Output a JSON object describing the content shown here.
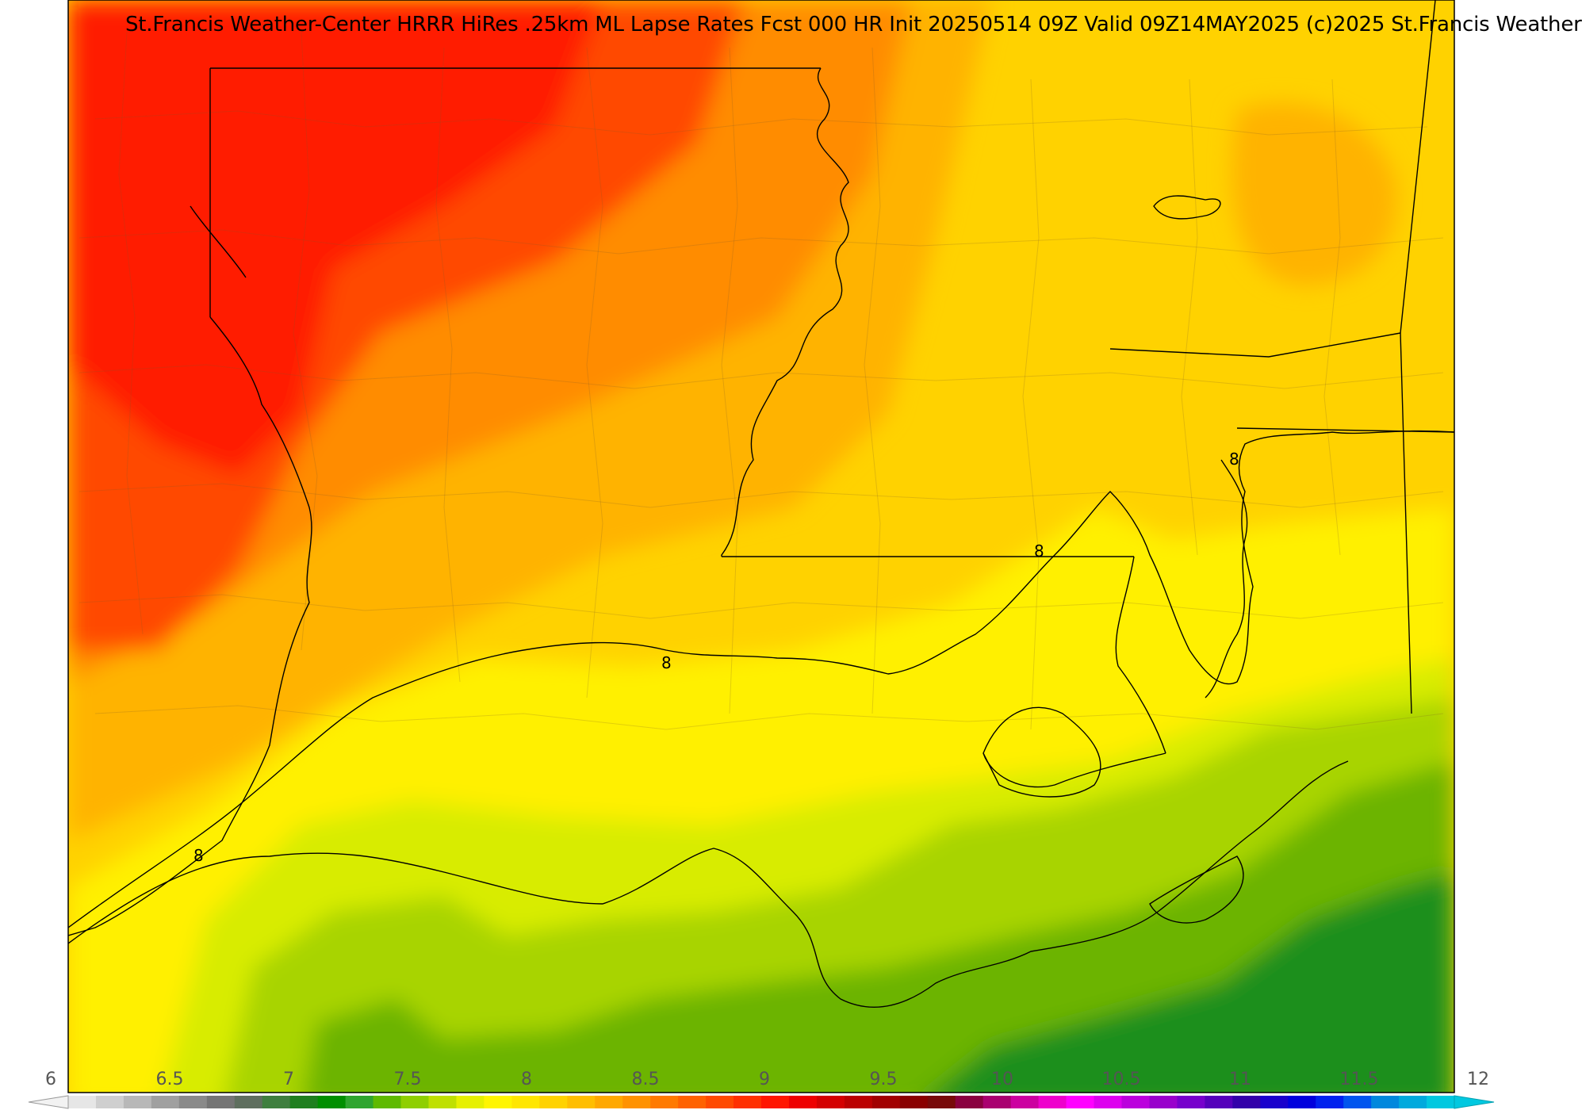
{
  "title": "St.Francis Weather-Center HRRR HiRes .25km ML Lapse Rates  Fcst 000 HR Init 20250514 09Z  Valid 09Z14MAY2025   (c)2025 St.Francis Weather",
  "map": {
    "field": "ML Lapse Rates",
    "contour_labels": [
      "8",
      "8",
      "8",
      "8"
    ],
    "region_colors": {
      "red": "#ff1a00",
      "orange_red": "#ff4a00",
      "orange": "#ff8c00",
      "amber": "#ffb300",
      "yellow_orange": "#ffd200",
      "yellow": "#fff000",
      "yellow_green": "#d8ec00",
      "light_green": "#a8d400",
      "green": "#6cb400",
      "dark_green": "#1f8f1f"
    }
  },
  "colorbar": {
    "tick_labels": [
      "6",
      "6.5",
      "7",
      "7.5",
      "8",
      "8.5",
      "9",
      "9.5",
      "10",
      "10.5",
      "11",
      "11.5",
      "12"
    ],
    "colors": [
      "#e6e6e6",
      "#cfcfcf",
      "#b8b8b8",
      "#a0a0a0",
      "#8a8a8a",
      "#757575",
      "#5f6f5f",
      "#3f7f3f",
      "#1f7f1f",
      "#008f00",
      "#2fa52f",
      "#5fba00",
      "#8fcf00",
      "#bfe000",
      "#e6f000",
      "#fff500",
      "#ffe600",
      "#ffd200",
      "#ffbe00",
      "#ffa800",
      "#ff9200",
      "#ff7a00",
      "#ff6200",
      "#ff4a00",
      "#ff3000",
      "#ff1600",
      "#ee0000",
      "#d40000",
      "#bb0000",
      "#a20000",
      "#8a0000",
      "#780a0a",
      "#8a0040",
      "#aa0070",
      "#cc00a0",
      "#ee00cc",
      "#ff00ff",
      "#dd00ee",
      "#bb00dd",
      "#9900cc",
      "#7700cc",
      "#5500bb",
      "#3300aa",
      "#1a00cc",
      "#0000dd",
      "#0022ee",
      "#0055ee",
      "#0088dd",
      "#00aadd",
      "#00c8e0"
    ]
  }
}
